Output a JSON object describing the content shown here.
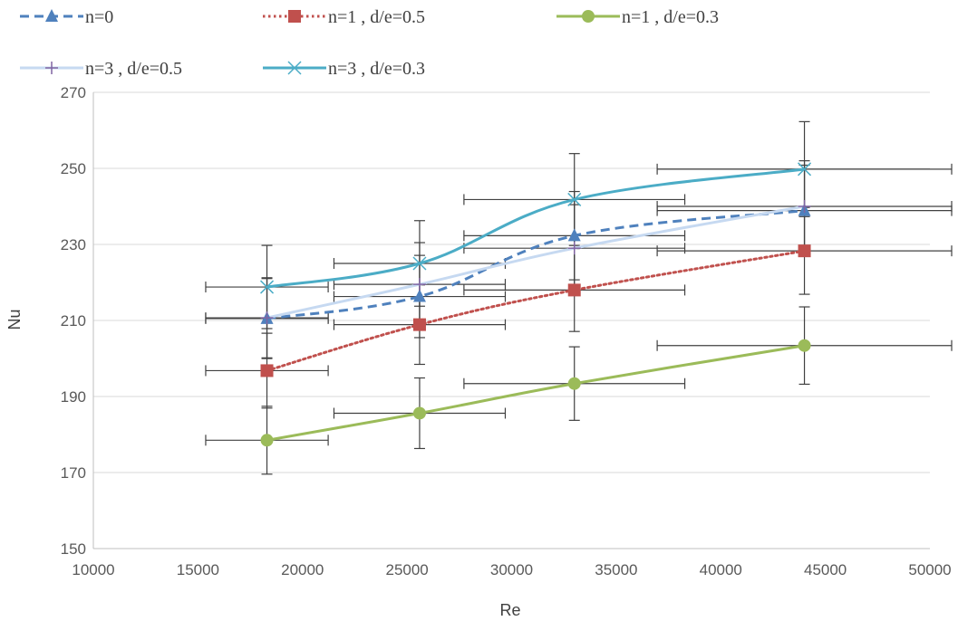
{
  "chart_data": {
    "type": "line",
    "title": "",
    "xlabel": "Re",
    "ylabel": "Nu",
    "xlim": [
      10000,
      50000
    ],
    "ylim": [
      150,
      270
    ],
    "x_ticks": [
      10000,
      15000,
      20000,
      25000,
      30000,
      35000,
      40000,
      45000,
      50000
    ],
    "y_ticks": [
      150,
      170,
      190,
      210,
      230,
      250,
      270
    ],
    "grid": "horizontal",
    "legend_position": "top",
    "error_bars": {
      "x_percent": 16,
      "y_percent": 5
    },
    "series": [
      {
        "name": "n=0",
        "color": "#4f81bd",
        "line": "dashed",
        "marker": "triangle",
        "x": [
          18300,
          25600,
          33000,
          44000
        ],
        "y": [
          210.5,
          216.3,
          232.3,
          238.9
        ]
      },
      {
        "name": "n=1 , d/e=0.5",
        "color": "#c0504d",
        "line": "dotted",
        "marker": "square",
        "x": [
          18300,
          25600,
          33000,
          44000
        ],
        "y": [
          196.8,
          208.9,
          218.0,
          228.3
        ]
      },
      {
        "name": "n=1 , d/e=0.3",
        "color": "#9bbb59",
        "line": "solid",
        "marker": "circle",
        "x": [
          18300,
          25600,
          33000,
          44000
        ],
        "y": [
          178.5,
          185.6,
          193.4,
          203.4
        ]
      },
      {
        "name": "n=3 , d/e=0.5",
        "color": "#c6d9f1",
        "marker_color": "#8064a2",
        "line": "solid",
        "marker": "plus",
        "x": [
          18300,
          25600,
          33000,
          44000
        ],
        "y": [
          210.7,
          219.5,
          229.0,
          240.0
        ]
      },
      {
        "name": "n=3 , d/e=0.3",
        "color": "#4bacc6",
        "line": "solid",
        "marker": "x",
        "x": [
          18300,
          25600,
          33000,
          44000
        ],
        "y": [
          218.8,
          225.0,
          241.8,
          249.8
        ]
      }
    ]
  }
}
